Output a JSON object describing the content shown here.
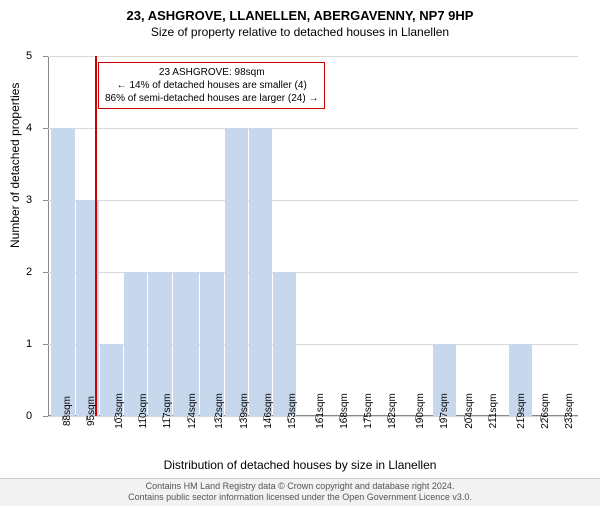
{
  "title": "23, ASHGROVE, LLANELLEN, ABERGAVENNY, NP7 9HP",
  "subtitle": "Size of property relative to detached houses in Llanellen",
  "y_axis_label": "Number of detached properties",
  "x_axis_label": "Distribution of detached houses by size in Llanellen",
  "footer_line1": "Contains HM Land Registry data © Crown copyright and database right 2024.",
  "footer_line2": "Contains public sector information licensed under the Open Government Licence v3.0.",
  "chart": {
    "type": "bar",
    "ylim": [
      0,
      5
    ],
    "yticks": [
      0,
      1,
      2,
      3,
      4,
      5
    ],
    "x_tick_labels": [
      "88sqm",
      "95sqm",
      "103sqm",
      "110sqm",
      "117sqm",
      "124sqm",
      "132sqm",
      "139sqm",
      "146sqm",
      "153sqm",
      "161sqm",
      "168sqm",
      "175sqm",
      "182sqm",
      "190sqm",
      "197sqm",
      "204sqm",
      "211sqm",
      "219sqm",
      "226sqm",
      "233sqm"
    ],
    "x_tick_positions": [
      88,
      95,
      103,
      110,
      117,
      124,
      132,
      139,
      146,
      153,
      161,
      168,
      175,
      182,
      190,
      197,
      204,
      211,
      219,
      226,
      233
    ],
    "x_range": [
      84,
      237
    ],
    "bars": [
      {
        "x0": 85,
        "x1": 92,
        "h": 4
      },
      {
        "x0": 92,
        "x1": 99,
        "h": 3
      },
      {
        "x0": 99,
        "x1": 106,
        "h": 1
      },
      {
        "x0": 106,
        "x1": 113,
        "h": 2
      },
      {
        "x0": 113,
        "x1": 120,
        "h": 2
      },
      {
        "x0": 120,
        "x1": 128,
        "h": 2
      },
      {
        "x0": 128,
        "x1": 135,
        "h": 2
      },
      {
        "x0": 135,
        "x1": 142,
        "h": 4
      },
      {
        "x0": 142,
        "x1": 149,
        "h": 4
      },
      {
        "x0": 149,
        "x1": 156,
        "h": 2
      },
      {
        "x0": 195,
        "x1": 202,
        "h": 1
      },
      {
        "x0": 217,
        "x1": 224,
        "h": 1
      }
    ],
    "bar_color": "#c8d8ec",
    "grid_color": "#d8d8d8",
    "axis_color": "#888888",
    "background_color": "#ffffff",
    "marker_x": 98,
    "marker_color": "#cc0000",
    "annotation": {
      "line1": "23 ASHGROVE: 98sqm",
      "line2": "← 14% of detached houses are smaller (4)",
      "line3": "86% of semi-detached houses are larger (24) →"
    }
  }
}
